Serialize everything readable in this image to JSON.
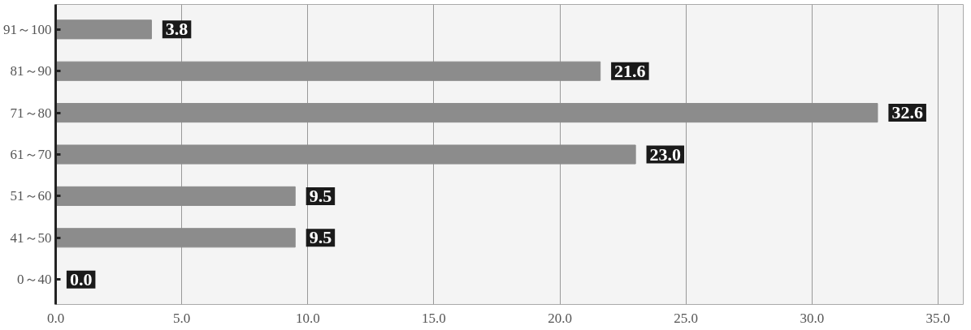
{
  "chart_data": {
    "type": "bar",
    "orientation": "horizontal",
    "categories": [
      "91～100",
      "81～90",
      "71～80",
      "61～70",
      "51～60",
      "41～50",
      "0～40"
    ],
    "values": [
      3.8,
      21.6,
      32.6,
      23.0,
      9.5,
      9.5,
      0.0
    ],
    "value_labels": [
      "3.8",
      "21.6",
      "32.6",
      "23.0",
      "9.5",
      "9.5",
      "0.0"
    ],
    "color": "#8c8c8c",
    "xlim": [
      0,
      36
    ],
    "xticks": [
      {
        "value": 0,
        "label": "0.0"
      },
      {
        "value": 5,
        "label": "5.0"
      },
      {
        "value": 10,
        "label": "10.0"
      },
      {
        "value": 15,
        "label": "15.0"
      },
      {
        "value": 20,
        "label": "20.0"
      },
      {
        "value": 25,
        "label": "25.0"
      },
      {
        "value": 30,
        "label": "30.0"
      },
      {
        "value": 35,
        "label": "35.0"
      }
    ],
    "grid": "x"
  }
}
